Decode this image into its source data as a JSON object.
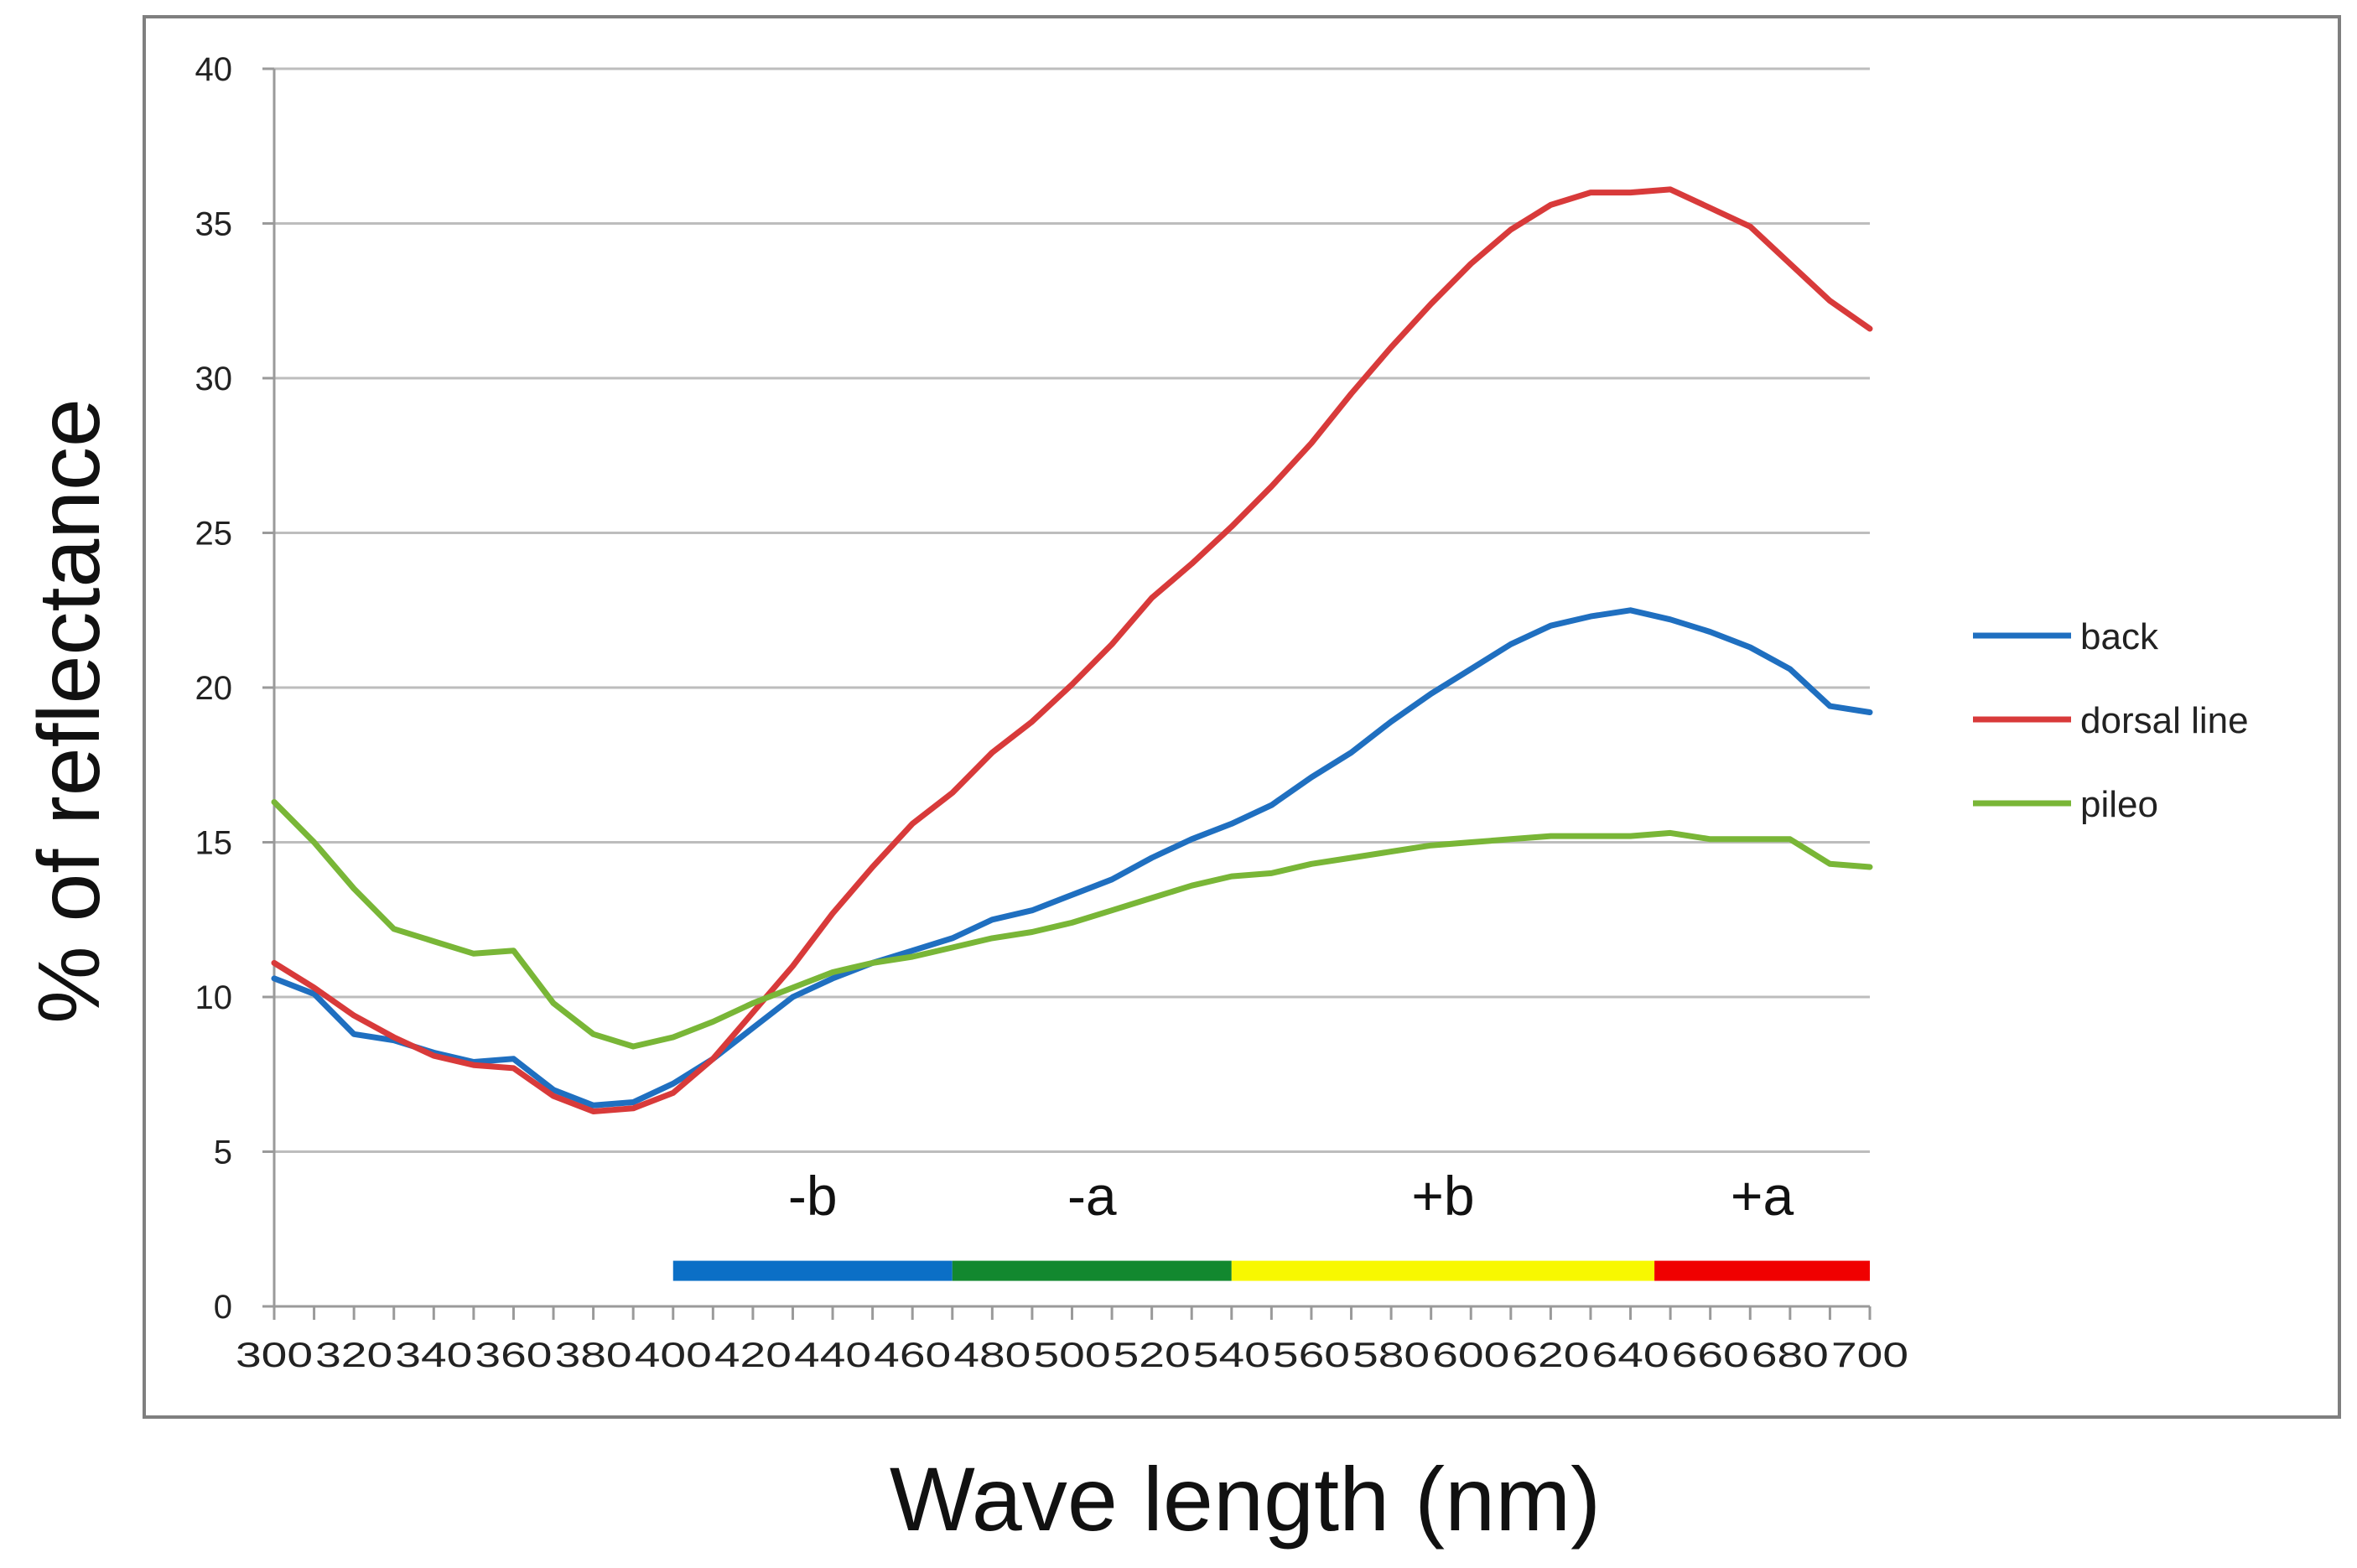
{
  "chart_data": {
    "type": "line",
    "xlabel": "Wave length (nm)",
    "ylabel": "% of reflectance",
    "ylim": [
      0,
      40
    ],
    "xlim": [
      300,
      700
    ],
    "yticks": [
      "0",
      "5",
      "10",
      "15",
      "20",
      "25",
      "30",
      "35",
      "40"
    ],
    "xticks": [
      "300",
      "320",
      "340",
      "360",
      "380",
      "400",
      "420",
      "440",
      "460",
      "480",
      "500",
      "520",
      "540",
      "560",
      "580",
      "600",
      "620",
      "640",
      "660",
      "680",
      "700"
    ],
    "grid": "horizontal",
    "legend_position": "right",
    "x": [
      300,
      310,
      320,
      330,
      340,
      350,
      360,
      370,
      380,
      390,
      400,
      410,
      420,
      430,
      440,
      450,
      460,
      470,
      480,
      490,
      500,
      510,
      520,
      530,
      540,
      550,
      560,
      570,
      580,
      590,
      600,
      610,
      620,
      630,
      640,
      650,
      660,
      670,
      680,
      690,
      700
    ],
    "series": [
      {
        "name": "back",
        "color": "#1f6fc0",
        "values": [
          10.6,
          10.1,
          8.8,
          8.6,
          8.2,
          7.9,
          8.0,
          7.0,
          6.5,
          6.6,
          7.2,
          8.0,
          9.0,
          10.0,
          10.6,
          11.1,
          11.5,
          11.9,
          12.5,
          12.8,
          13.3,
          13.8,
          14.5,
          15.1,
          15.6,
          16.2,
          17.1,
          17.9,
          18.9,
          19.8,
          20.6,
          21.4,
          22.0,
          22.3,
          22.5,
          22.2,
          21.8,
          21.3,
          20.6,
          19.4,
          19.2
        ]
      },
      {
        "name": "dorsal line",
        "color": "#d83a3a",
        "values": [
          11.1,
          10.3,
          9.4,
          8.7,
          8.1,
          7.8,
          7.7,
          6.8,
          6.3,
          6.4,
          6.9,
          8.0,
          9.5,
          11.0,
          12.7,
          14.2,
          15.6,
          16.6,
          17.9,
          18.9,
          20.1,
          21.4,
          22.9,
          24.0,
          25.2,
          26.5,
          27.9,
          29.5,
          31.0,
          32.4,
          33.7,
          34.8,
          35.6,
          36.0,
          36.0,
          36.1,
          35.5,
          34.9,
          33.7,
          32.5,
          31.6
        ]
      },
      {
        "name": "pileo",
        "color": "#79b637",
        "values": [
          16.3,
          15.0,
          13.5,
          12.2,
          11.8,
          11.4,
          11.5,
          9.8,
          8.8,
          8.4,
          8.7,
          9.2,
          9.8,
          10.3,
          10.8,
          11.1,
          11.3,
          11.6,
          11.9,
          12.1,
          12.4,
          12.8,
          13.2,
          13.6,
          13.9,
          14.0,
          14.3,
          14.5,
          14.7,
          14.9,
          15.0,
          15.1,
          15.2,
          15.2,
          15.2,
          15.3,
          15.1,
          15.1,
          15.1,
          14.3,
          14.2
        ]
      }
    ],
    "color_bands": [
      {
        "label": "-b",
        "from": 400,
        "to": 470,
        "color": "#0b6fc6"
      },
      {
        "label": "-a",
        "from": 470,
        "to": 540,
        "color": "#12882f"
      },
      {
        "label": "+b",
        "from": 540,
        "to": 646,
        "color": "#f8f800"
      },
      {
        "label": "+a",
        "from": 646,
        "to": 700,
        "color": "#f00000"
      }
    ]
  }
}
